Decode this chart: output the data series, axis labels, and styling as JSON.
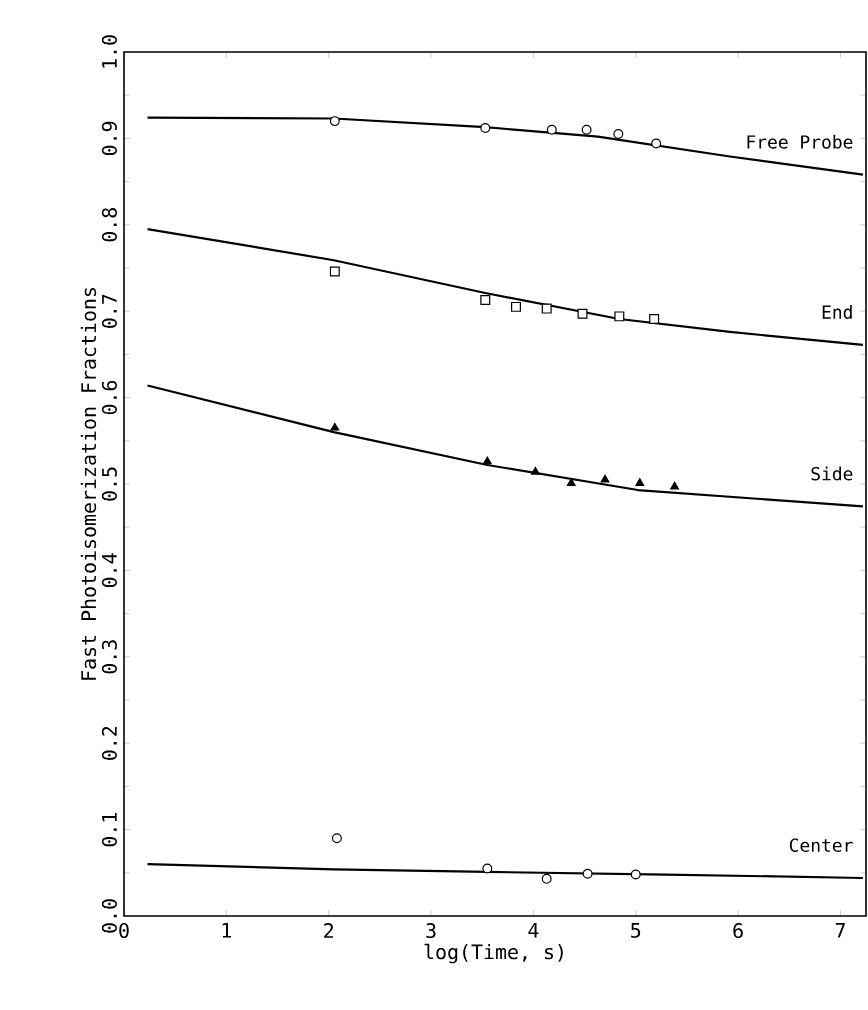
{
  "chart_data": {
    "type": "scatter",
    "xlabel": "log(Time, s)",
    "ylabel": "Fast Photoisomerization Fractions",
    "xlim": [
      0,
      7.25
    ],
    "ylim": [
      0,
      1.0
    ],
    "xticks": [
      0,
      1,
      2,
      3,
      4,
      5,
      6,
      7
    ],
    "yticks": [
      {
        "value": 0,
        "label": "0.0"
      },
      0.1,
      0.2,
      0.3,
      0.4,
      0.5,
      0.6,
      0.7,
      0.8,
      0.9,
      {
        "value": 1,
        "label": "1.0"
      }
    ],
    "grid": false,
    "legend": false,
    "series": [
      {
        "type": "scatter",
        "marker": "circle",
        "color": "#000000",
        "x": [
          2.06,
          3.53,
          4.18,
          4.52,
          4.83,
          5.2
        ],
        "values": [
          0.92,
          0.912,
          0.91,
          0.91,
          0.905,
          0.894
        ]
      },
      {
        "type": "line",
        "name": "Free Probe",
        "marker": "none",
        "line_style": "solid",
        "color": "#000000",
        "x": [
          0.23,
          2.05,
          3.53,
          4.63,
          5.92,
          7.22
        ],
        "values": [
          0.924,
          0.923,
          0.913,
          0.902,
          0.879,
          0.858
        ]
      },
      {
        "type": "scatter",
        "marker": "square",
        "color": "#000000",
        "x": [
          2.06,
          3.53,
          3.83,
          4.13,
          4.48,
          4.84,
          5.18
        ],
        "values": [
          0.746,
          0.713,
          0.705,
          0.703,
          0.697,
          0.694,
          0.691
        ]
      },
      {
        "type": "line",
        "name": "End",
        "marker": "none",
        "line_style": "solid",
        "color": "#000000",
        "x": [
          0.23,
          2.05,
          3.53,
          4.84,
          5.92,
          7.22
        ],
        "values": [
          0.795,
          0.759,
          0.721,
          0.691,
          0.676,
          0.661
        ]
      },
      {
        "type": "scatter",
        "marker": "triangle",
        "color": "#000000",
        "x": [
          2.06,
          3.55,
          4.02,
          4.37,
          4.7,
          5.04,
          5.38
        ],
        "values": [
          0.565,
          0.526,
          0.514,
          0.501,
          0.505,
          0.501,
          0.497
        ]
      },
      {
        "type": "line",
        "name": "Side",
        "marker": "none",
        "line_style": "solid",
        "color": "#000000",
        "x": [
          0.23,
          2.05,
          3.55,
          5.02,
          7.22
        ],
        "values": [
          0.614,
          0.56,
          0.522,
          0.493,
          0.474
        ]
      },
      {
        "type": "scatter",
        "marker": "circle",
        "color": "#000000",
        "x": [
          2.08,
          3.55,
          4.13,
          4.53,
          5.0
        ],
        "values": [
          0.09,
          0.055,
          0.043,
          0.049,
          0.048
        ]
      },
      {
        "type": "line",
        "name": "Center",
        "marker": "none",
        "line_style": "solid",
        "color": "#000000",
        "x": [
          0.23,
          2.05,
          3.55,
          5.29,
          7.22
        ],
        "values": [
          0.06,
          0.054,
          0.051,
          0.048,
          0.044
        ]
      }
    ]
  }
}
